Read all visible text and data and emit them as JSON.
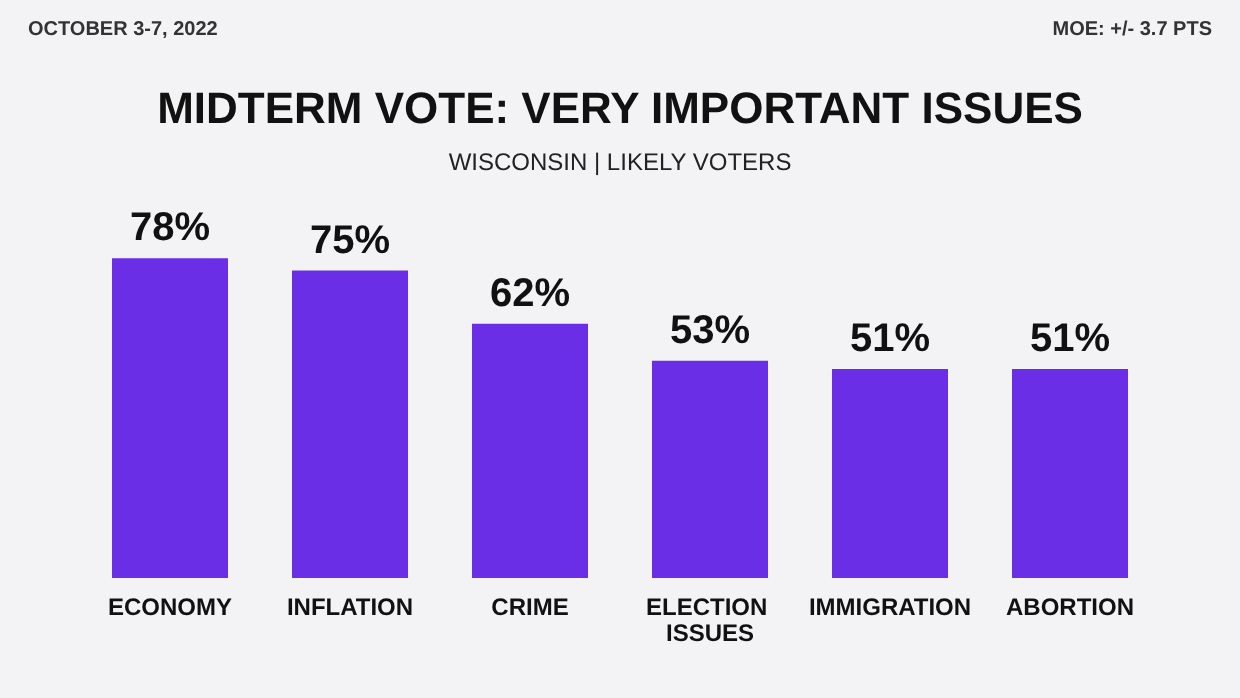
{
  "chart_data": {
    "type": "bar",
    "title": "MIDTERM VOTE: VERY IMPORTANT ISSUES",
    "subtitle": "WISCONSIN | LIKELY VOTERS",
    "annotations": [
      "OCTOBER 3-7, 2022",
      "MOE: +/- 3.7 PTS"
    ],
    "categories": [
      "ECONOMY",
      "INFLATION",
      "CRIME",
      "ELECTION ISSUES",
      "IMMIGRATION",
      "ABORTION"
    ],
    "values": [
      78,
      75,
      62,
      53,
      51,
      51
    ],
    "color": "#6a2ee6",
    "value_labels": [
      "78%",
      "75%",
      "62%",
      "53%",
      "51%",
      "51%"
    ]
  }
}
